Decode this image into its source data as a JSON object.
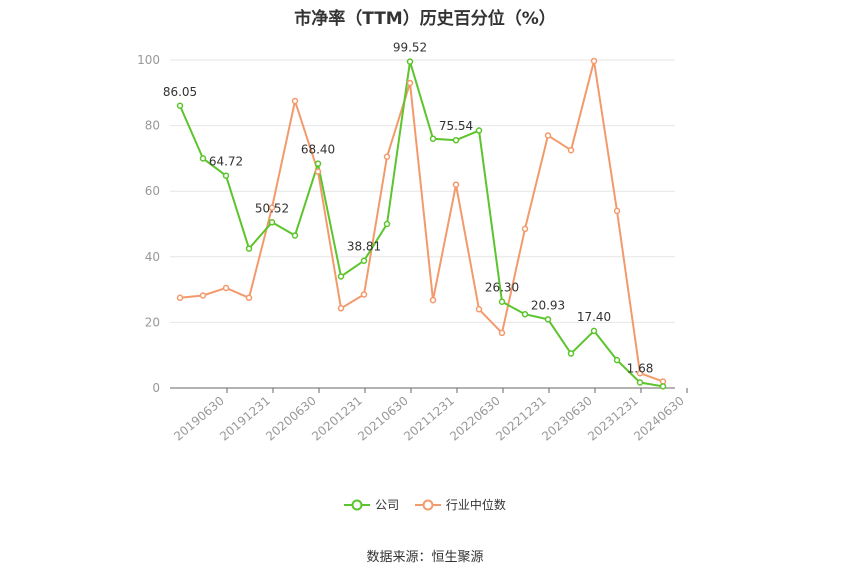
{
  "chart_data": {
    "type": "line",
    "title": "市净率（TTM）历史百分位（%）",
    "x": [
      "20190630",
      "20190930",
      "20191231",
      "20200331",
      "20200630",
      "20200930",
      "20201231",
      "20210331",
      "20210630",
      "20210930",
      "20211231",
      "20220331",
      "20220630",
      "20220930",
      "20221231",
      "20230331",
      "20230630",
      "20230930",
      "20231231",
      "20240331",
      "20240630",
      "20240930"
    ],
    "x_tick_labels": [
      "20190630",
      "20191231",
      "20200630",
      "20201231",
      "20210630",
      "20211231",
      "20220630",
      "20221231",
      "20230630",
      "20231231",
      "20240630"
    ],
    "y_ticks": [
      0,
      20,
      40,
      60,
      80,
      100
    ],
    "ylim": [
      0,
      100
    ],
    "xlabel": "",
    "ylabel": "",
    "grid": true,
    "legend_position": "bottom",
    "series": [
      {
        "name": "公司",
        "color": "#5cc42c",
        "values": [
          86.05,
          70.0,
          64.72,
          42.5,
          50.52,
          46.5,
          68.4,
          34.0,
          38.81,
          50.0,
          99.52,
          76.0,
          75.54,
          78.5,
          26.3,
          22.5,
          20.93,
          10.5,
          17.4,
          8.5,
          1.68,
          0.5
        ],
        "data_labels": [
          {
            "index": 0,
            "text": "86.05"
          },
          {
            "index": 2,
            "text": "64.72"
          },
          {
            "index": 4,
            "text": "50.52"
          },
          {
            "index": 6,
            "text": "68.40"
          },
          {
            "index": 8,
            "text": "38.81"
          },
          {
            "index": 10,
            "text": "99.52"
          },
          {
            "index": 12,
            "text": "75.54"
          },
          {
            "index": 14,
            "text": "26.30"
          },
          {
            "index": 16,
            "text": "20.93"
          },
          {
            "index": 18,
            "text": "17.40"
          },
          {
            "index": 20,
            "text": "1.68"
          }
        ]
      },
      {
        "name": "行业中位数",
        "color": "#f39a6c",
        "values": [
          27.5,
          28.2,
          30.5,
          27.5,
          55.0,
          87.5,
          66.0,
          24.3,
          28.5,
          70.5,
          93.0,
          26.8,
          62.0,
          24.0,
          16.8,
          48.5,
          77.0,
          72.5,
          99.7,
          54.0,
          4.5,
          2.0
        ]
      }
    ]
  },
  "footer": {
    "source": "数据来源：恒生聚源"
  }
}
